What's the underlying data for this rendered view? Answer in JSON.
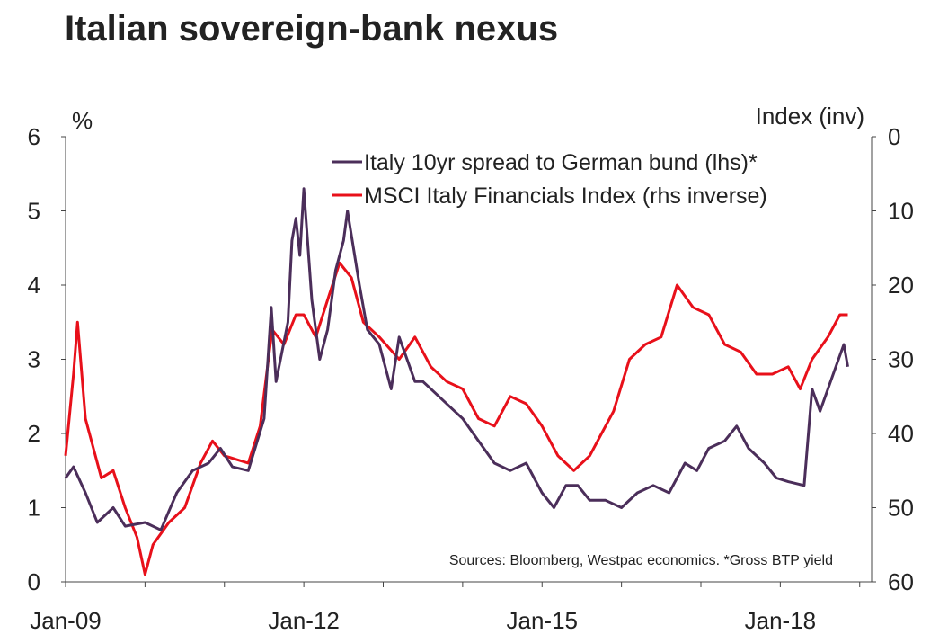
{
  "chart_data": {
    "type": "line",
    "title": "Italian sovereign-bank nexus",
    "ylabel_left": "%",
    "ylabel_right": "Index (inv)",
    "ylim_left": [
      0,
      6
    ],
    "ylim_right": [
      0,
      60
    ],
    "right_axis_inverted": true,
    "left_ticks": [
      "0",
      "1",
      "2",
      "3",
      "4",
      "5",
      "6"
    ],
    "right_ticks": [
      "0",
      "10",
      "20",
      "30",
      "40",
      "50",
      "60"
    ],
    "x_ticks": [
      {
        "label": "Jan-09",
        "x": 2009
      },
      {
        "label": "Jan-12",
        "x": 2012
      },
      {
        "label": "Jan-15",
        "x": 2015
      },
      {
        "label": "Jan-18",
        "x": 2018
      }
    ],
    "xlim": [
      2009,
      2019.15
    ],
    "grid": false,
    "legend_position": "top-right",
    "source": "Sources: Bloomberg, Westpac economics. *Gross BTP yield",
    "series": [
      {
        "name": "Italy 10yr spread to German bund (lhs)*",
        "axis": "left",
        "color": "#4b2e5a",
        "x": [
          2009.0,
          2009.1,
          2009.25,
          2009.4,
          2009.6,
          2009.75,
          2010.0,
          2010.2,
          2010.4,
          2010.6,
          2010.8,
          2010.95,
          2011.1,
          2011.3,
          2011.5,
          2011.59,
          2011.65,
          2011.8,
          2011.85,
          2011.9,
          2011.95,
          2012.0,
          2012.1,
          2012.2,
          2012.3,
          2012.4,
          2012.5,
          2012.55,
          2012.7,
          2012.8,
          2012.95,
          2013.1,
          2013.2,
          2013.4,
          2013.5,
          2013.7,
          2013.9,
          2014.0,
          2014.2,
          2014.4,
          2014.6,
          2014.8,
          2015.0,
          2015.15,
          2015.3,
          2015.45,
          2015.6,
          2015.8,
          2016.0,
          2016.2,
          2016.4,
          2016.6,
          2016.8,
          2016.95,
          2017.1,
          2017.3,
          2017.45,
          2017.6,
          2017.8,
          2017.95,
          2018.1,
          2018.3,
          2018.4,
          2018.5,
          2018.6,
          2018.7,
          2018.8,
          2018.85
        ],
        "values": [
          1.4,
          1.55,
          1.2,
          0.8,
          1.0,
          0.75,
          0.8,
          0.7,
          1.2,
          1.5,
          1.6,
          1.8,
          1.55,
          1.5,
          2.2,
          3.7,
          2.7,
          3.5,
          4.6,
          4.9,
          4.4,
          5.3,
          3.8,
          3.0,
          3.4,
          4.2,
          4.6,
          5.0,
          4.0,
          3.4,
          3.2,
          2.6,
          3.3,
          2.7,
          2.7,
          2.5,
          2.3,
          2.2,
          1.9,
          1.6,
          1.5,
          1.6,
          1.2,
          1.0,
          1.3,
          1.3,
          1.1,
          1.1,
          1.0,
          1.2,
          1.3,
          1.2,
          1.6,
          1.5,
          1.8,
          1.9,
          2.1,
          1.8,
          1.6,
          1.4,
          1.35,
          1.3,
          2.6,
          2.3,
          2.6,
          2.9,
          3.2,
          2.9
        ]
      },
      {
        "name": "MSCI Italy Financials Index (rhs inverse)",
        "axis": "right",
        "color": "#e8101a",
        "x": [
          2009.0,
          2009.1,
          2009.15,
          2009.25,
          2009.45,
          2009.6,
          2009.75,
          2009.9,
          2010.0,
          2010.1,
          2010.3,
          2010.5,
          2010.7,
          2010.85,
          2011.0,
          2011.3,
          2011.45,
          2011.6,
          2011.75,
          2011.9,
          2012.0,
          2012.15,
          2012.3,
          2012.45,
          2012.6,
          2012.75,
          2012.95,
          2013.2,
          2013.4,
          2013.6,
          2013.8,
          2014.0,
          2014.2,
          2014.4,
          2014.6,
          2014.8,
          2015.0,
          2015.2,
          2015.4,
          2015.6,
          2015.75,
          2015.9,
          2016.1,
          2016.3,
          2016.5,
          2016.7,
          2016.9,
          2017.1,
          2017.3,
          2017.5,
          2017.7,
          2017.9,
          2018.1,
          2018.25,
          2018.4,
          2018.6,
          2018.75,
          2018.85
        ],
        "values": [
          43,
          32,
          25,
          38,
          46,
          45,
          50,
          54,
          59,
          55,
          52,
          50,
          44,
          41,
          43,
          44,
          39,
          26,
          28,
          24,
          24,
          27,
          22,
          17,
          19,
          25,
          27,
          30,
          27,
          31,
          33,
          34,
          38,
          39,
          35,
          36,
          39,
          43,
          45,
          43,
          40,
          37,
          30,
          28,
          27,
          20,
          23,
          24,
          28,
          29,
          32,
          32,
          31,
          34,
          30,
          27,
          24,
          24
        ]
      }
    ]
  }
}
